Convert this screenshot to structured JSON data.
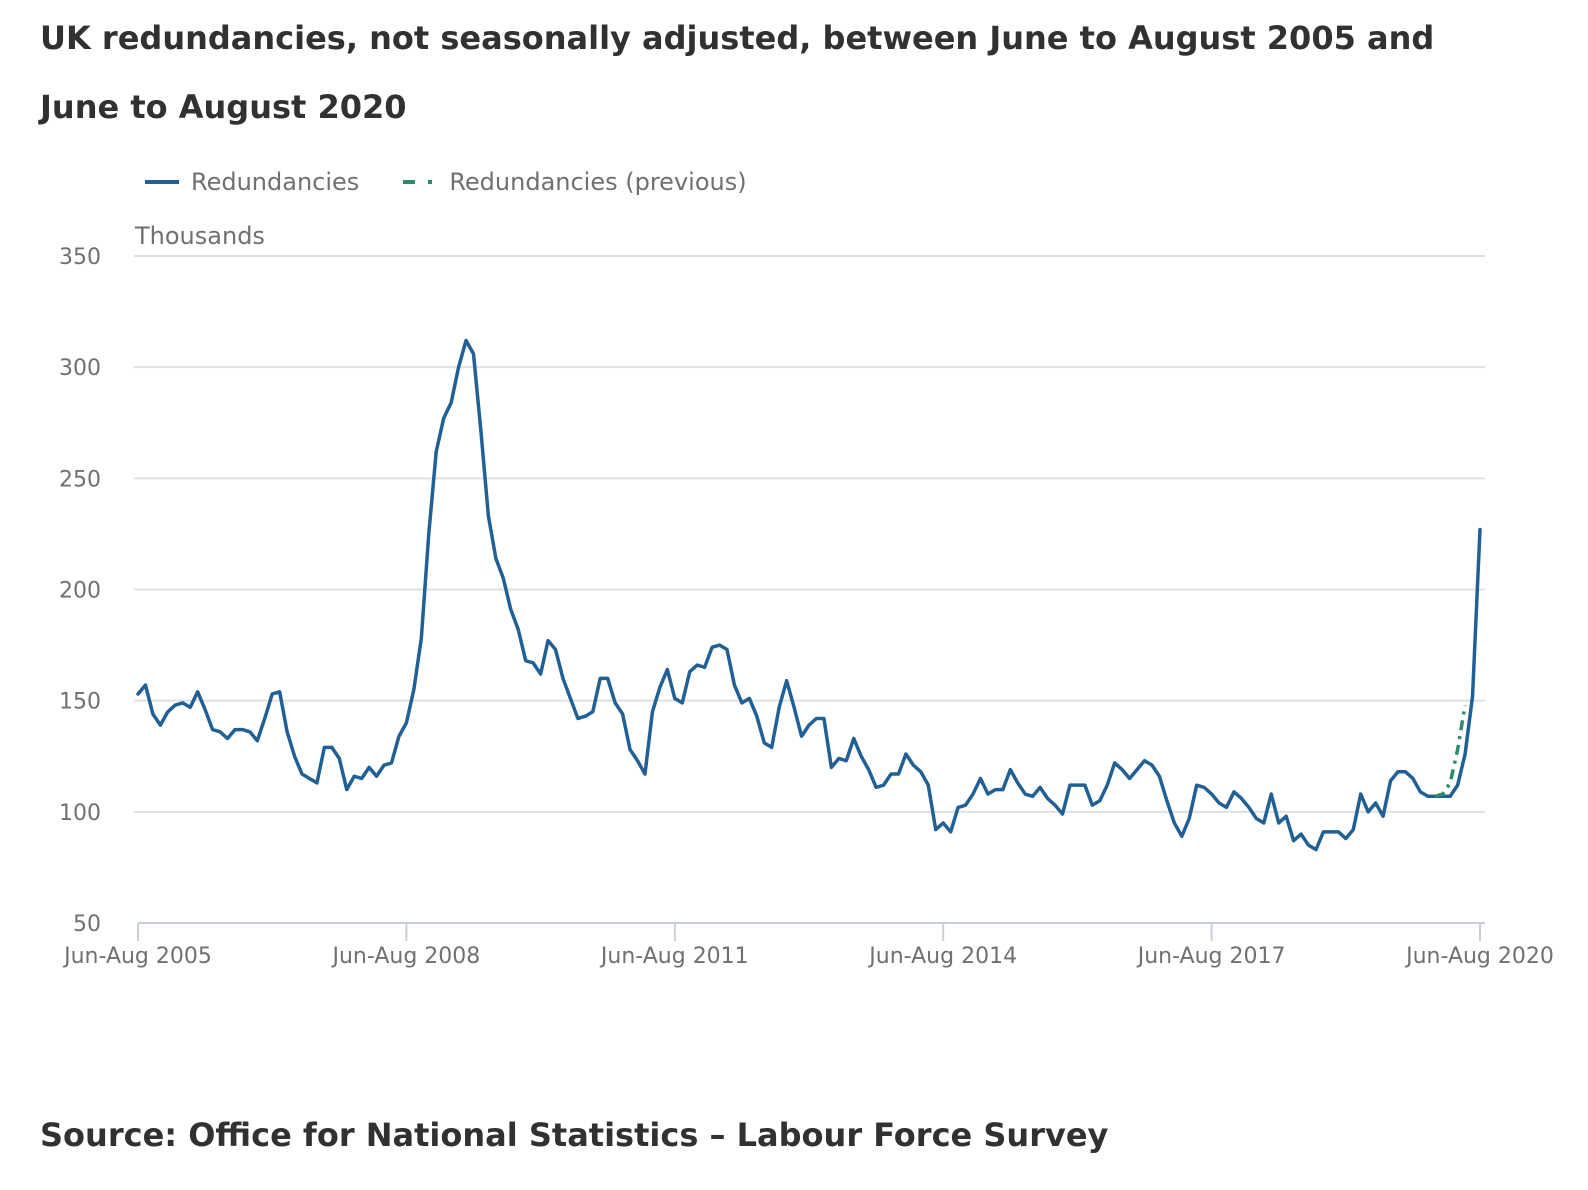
{
  "title": "UK redundancies, not seasonally adjusted, between June to August 2005 and June to August 2020",
  "source": "Source: Office for National Statistics – Labour Force Survey",
  "colors": {
    "series_main": "#206095",
    "series_previous": "#2f8a6b",
    "grid": "#e0e0e0",
    "text_muted": "#707071",
    "title": "#323132"
  },
  "chart_data": {
    "type": "line",
    "ylabel": "Thousands",
    "ylim": [
      50,
      350
    ],
    "yticks": [
      50,
      100,
      150,
      200,
      250,
      300,
      350
    ],
    "xticks": [
      "Jun-Aug 2005",
      "Jun-Aug 2008",
      "Jun-Aug 2011",
      "Jun-Aug 2014",
      "Jun-Aug 2017",
      "Jun-Aug 2020"
    ],
    "x_unit": "months since Jun-Aug 2005",
    "xlim": [
      0,
      180
    ],
    "grid": true,
    "legend_position": "top-left",
    "series": [
      {
        "name": "Redundancies",
        "style": "solid",
        "values": [
          153,
          157,
          144,
          139,
          145,
          148,
          149,
          147,
          154,
          146,
          137,
          136,
          133,
          137,
          137,
          136,
          132,
          142,
          153,
          154,
          136,
          125,
          117,
          115,
          113,
          129,
          129,
          124,
          110,
          116,
          115,
          120,
          116,
          121,
          122,
          134,
          140,
          155,
          178,
          225,
          262,
          277,
          284,
          300,
          312,
          306,
          271,
          233,
          214,
          205,
          191,
          182,
          168,
          167,
          162,
          177,
          173,
          160,
          151,
          142,
          143,
          145,
          160,
          160,
          149,
          144,
          128,
          123,
          117,
          145,
          156,
          164,
          151,
          149,
          163,
          166,
          165,
          174,
          175,
          173,
          157,
          149,
          151,
          143,
          131,
          129,
          147,
          159,
          147,
          134,
          139,
          142,
          142,
          120,
          124,
          123,
          133,
          125,
          119,
          111,
          112,
          117,
          117,
          126,
          121,
          118,
          112,
          92,
          95,
          91,
          102,
          103,
          108,
          115,
          108,
          110,
          110,
          119,
          113,
          108,
          107,
          111,
          106,
          103,
          99,
          112,
          112,
          112,
          103,
          105,
          112,
          122,
          119,
          115,
          119,
          123,
          121,
          116,
          105,
          95,
          89,
          97,
          112,
          111,
          108,
          104,
          102,
          109,
          106,
          102,
          97,
          95,
          108,
          95,
          98,
          87,
          90,
          85,
          83,
          91,
          91,
          91,
          88,
          92,
          108,
          100,
          104,
          98,
          114,
          118,
          118,
          115,
          109,
          107,
          107,
          107,
          107,
          112,
          126,
          152,
          227
        ]
      },
      {
        "name": "Redundancies (previous)",
        "style": "dashed",
        "x_start": 174,
        "values": [
          107,
          108,
          113,
          128,
          148
        ]
      }
    ]
  }
}
